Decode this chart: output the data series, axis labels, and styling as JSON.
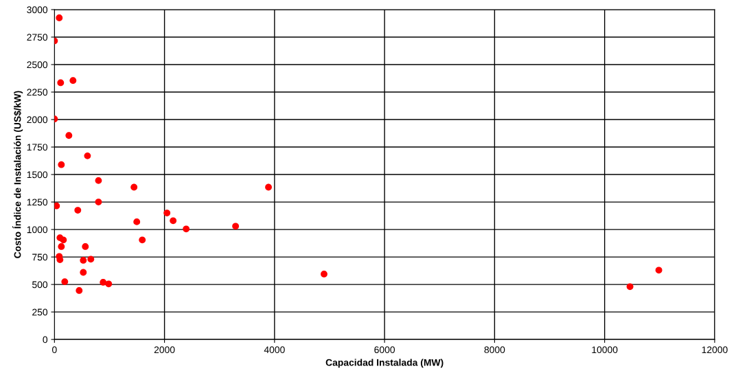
{
  "chart_data": {
    "type": "scatter",
    "xlabel": "Capacidad Instalada (MW)",
    "ylabel": "Costo Índice de Instalación (US$/kW)",
    "x": [
      87,
      0,
      112,
      337,
      0,
      262,
      125,
      600,
      800,
      800,
      1446,
      3890,
      37,
      424,
      1496,
      2045,
      2157,
      2394,
      1596,
      3292,
      100,
      162,
      125,
      561,
      87,
      100,
      524,
      661,
      524,
      187,
      885,
      985,
      449,
      4900,
      10461,
      10985
    ],
    "values": [
      2925,
      2715,
      2335,
      2355,
      2005,
      1855,
      1590,
      1670,
      1445,
      1250,
      1385,
      1385,
      1215,
      1175,
      1070,
      1150,
      1080,
      1005,
      905,
      1030,
      925,
      905,
      845,
      845,
      755,
      725,
      720,
      730,
      610,
      525,
      520,
      505,
      445,
      595,
      480,
      630
    ],
    "color": "#ff0000",
    "marker": "circle",
    "xlim": [
      0,
      12000
    ],
    "xticks": [
      0,
      2000,
      4000,
      6000,
      8000,
      10000,
      12000
    ],
    "ylim": [
      0,
      3000
    ],
    "yticks": [
      0,
      250,
      500,
      750,
      1000,
      1250,
      1500,
      1750,
      2000,
      2250,
      2500,
      2750,
      3000
    ],
    "grid": true
  }
}
